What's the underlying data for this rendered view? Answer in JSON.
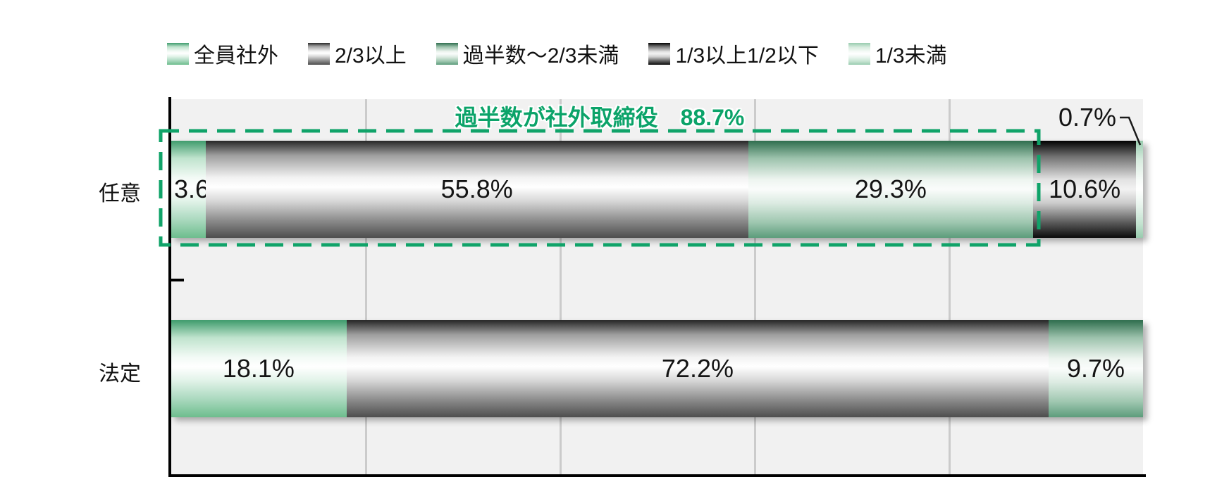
{
  "colors": {
    "accent_green": "#10a369",
    "plot_background": "#f1f1f1",
    "gridline": "#cbcbcb",
    "axis": "#000000",
    "label_text": "#141414",
    "series_all_outside": "#6dbd8d",
    "series_two_thirds_plus": "#8c8c8c",
    "series_majority_to_two_thirds": "#5c9c7b",
    "series_one_third_to_half": "#1a1a1a",
    "series_under_one_third": "#98cbae"
  },
  "legend": {
    "items": [
      {
        "label": "全員社外"
      },
      {
        "label": "2/3以上"
      },
      {
        "label": "過半数～2/3未満"
      },
      {
        "label": "1/3以上1/2以下"
      },
      {
        "label": "1/3未満"
      }
    ]
  },
  "chart_data": {
    "type": "bar",
    "orientation": "horizontal",
    "stacked": true,
    "categories": [
      "任意",
      "法定"
    ],
    "series": [
      {
        "name": "全員社外",
        "values": [
          3.6,
          18.1
        ]
      },
      {
        "name": "2/3以上",
        "values": [
          55.8,
          72.2
        ]
      },
      {
        "name": "過半数～2/3未満",
        "values": [
          29.3,
          9.7
        ]
      },
      {
        "name": "1/3以上1/2以下",
        "values": [
          10.6,
          0
        ]
      },
      {
        "name": "1/3未満",
        "values": [
          0.7,
          0
        ]
      }
    ],
    "xlim": [
      0,
      100
    ],
    "gridline_step": 20,
    "grid": true,
    "legend_position": "top",
    "annotations": [
      {
        "text": "過半数が社外取締役　88.7%"
      },
      {
        "text": "0.7%"
      }
    ]
  },
  "bars": [
    {
      "category": "任意",
      "segments": [
        {
          "label": "3.6%"
        },
        {
          "label": "55.8%"
        },
        {
          "label": "29.3%"
        },
        {
          "label": "10.6%"
        },
        {
          "label": ""
        }
      ]
    },
    {
      "category": "法定",
      "segments": [
        {
          "label": "18.1%"
        },
        {
          "label": "72.2%"
        },
        {
          "label": "9.7%"
        }
      ]
    }
  ],
  "annotation": {
    "label": "過半数が社外取締役　88.7%"
  },
  "callout": {
    "label": "0.7%"
  }
}
